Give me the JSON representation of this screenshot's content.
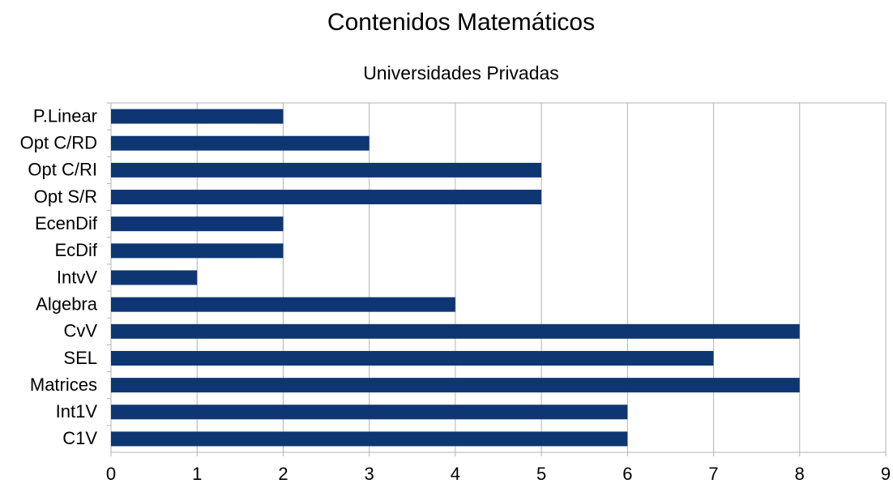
{
  "chart_data": {
    "type": "barh",
    "title": "Contenidos Matemáticos",
    "subtitle": "Universidades Privadas",
    "categories": [
      "P.Linear",
      "Opt C/RD",
      "Opt C/RI",
      "Opt S/R",
      "EcenDif",
      "EcDif",
      "IntvV",
      "Algebra",
      "CvV",
      "SEL",
      "Matrices",
      "Int1V",
      "C1V"
    ],
    "values": [
      2,
      3,
      5,
      5,
      2,
      2,
      1,
      4,
      8,
      7,
      8,
      6,
      6
    ],
    "color": "#0e3672",
    "xlim": [
      0,
      9
    ],
    "xticks": [
      0,
      1,
      2,
      3,
      4,
      5,
      6,
      7,
      8,
      9
    ],
    "grid": true
  }
}
